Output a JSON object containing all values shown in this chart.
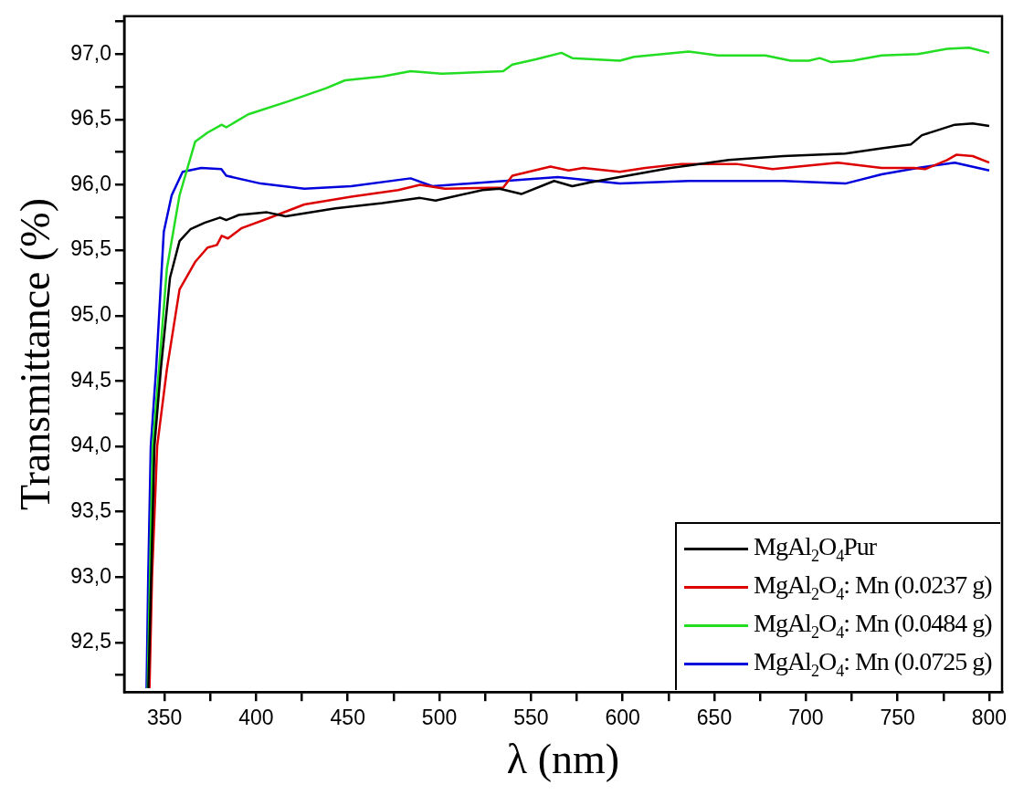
{
  "chart_data": {
    "type": "line",
    "xlabel": "λ (nm)",
    "ylabel": "Transmittance (%)",
    "xlim": [
      328,
      807
    ],
    "ylim": [
      92.12,
      97.29
    ],
    "xticks": [
      350,
      {
        "value": 375,
        "label": null
      },
      400,
      {
        "value": 425,
        "label": null
      },
      450,
      {
        "value": 475,
        "label": null
      },
      500,
      {
        "value": 525,
        "label": null
      },
      550,
      {
        "value": 575,
        "label": null
      },
      600,
      {
        "value": 625,
        "label": null
      },
      650,
      {
        "value": 675,
        "label": null
      },
      700,
      {
        "value": 725,
        "label": null
      },
      750,
      {
        "value": 775,
        "label": null
      },
      800
    ],
    "yticks": [
      {
        "value": 92.25,
        "label": null
      },
      {
        "value": 92.5,
        "label": "92,5"
      },
      {
        "value": 92.75,
        "label": null
      },
      {
        "value": 93,
        "label": "93,0"
      },
      {
        "value": 93.25,
        "label": null
      },
      {
        "value": 93.5,
        "label": "93,5"
      },
      {
        "value": 93.75,
        "label": null
      },
      {
        "value": 94,
        "label": "94,0"
      },
      {
        "value": 94.25,
        "label": null
      },
      {
        "value": 94.5,
        "label": "94,5"
      },
      {
        "value": 94.75,
        "label": null
      },
      {
        "value": 95,
        "label": "95,0"
      },
      {
        "value": 95.25,
        "label": null
      },
      {
        "value": 95.5,
        "label": "95,5"
      },
      {
        "value": 95.75,
        "label": null
      },
      {
        "value": 96,
        "label": "96,0"
      },
      {
        "value": 96.25,
        "label": null
      },
      {
        "value": 96.5,
        "label": "96,5"
      },
      {
        "value": 96.75,
        "label": null
      },
      {
        "value": 97,
        "label": "97,0"
      },
      {
        "value": 97.25,
        "label": null
      }
    ],
    "grid": false,
    "legend": "bottom right",
    "marker": "none",
    "line_style": "solid",
    "series": [
      {
        "name": "MgAl$_{2}$O$_{4}$Pur",
        "color": "#000000",
        "x": [
          341.2,
          344.5,
          348,
          353,
          358.2,
          364.1,
          371.8,
          380.3,
          383.7,
          390.5,
          405.9,
          416.1,
          443.3,
          468.9,
          489.4,
          497.9,
          523.5,
          532.8,
          544.7,
          562.6,
          572.5,
          582.4,
          626.1,
          657.9,
          687.7,
          721.5,
          741.3,
          757.3,
          763.3,
          781.2,
          791,
          800
        ],
        "values": [
          92.15,
          94.0,
          94.59,
          95.29,
          95.57,
          95.66,
          95.71,
          95.75,
          95.73,
          95.77,
          95.79,
          95.76,
          95.82,
          95.86,
          95.9,
          95.88,
          95.96,
          95.97,
          95.93,
          96.03,
          95.99,
          96.02,
          96.13,
          96.19,
          96.22,
          96.24,
          96.28,
          96.31,
          96.38,
          96.46,
          96.47,
          96.45
        ]
      },
      {
        "name": "MgAl$_{2}$O$_{4}$: Mn (0.0237 g)",
        "color": "#dd0000",
        "x": [
          341.8,
          343.2,
          346,
          351.3,
          358.2,
          366.7,
          373.5,
          378.6,
          381.2,
          384.6,
          392.2,
          405.9,
          426.3,
          451.9,
          477.5,
          489.4,
          503,
          534.8,
          539.8,
          560.6,
          570.5,
          578.5,
          598.4,
          612.3,
          632.1,
          662,
          681.8,
          717.5,
          741.3,
          759,
          765,
          777,
          782,
          791,
          800
        ],
        "values": [
          92.15,
          93.0,
          94.0,
          94.59,
          95.2,
          95.41,
          95.52,
          95.54,
          95.61,
          95.59,
          95.67,
          95.74,
          95.85,
          95.91,
          95.96,
          96.0,
          95.97,
          95.98,
          96.07,
          96.14,
          96.11,
          96.13,
          96.1,
          96.13,
          96.16,
          96.16,
          96.12,
          96.17,
          96.13,
          96.13,
          96.12,
          96.19,
          96.23,
          96.22,
          96.17
        ]
      },
      {
        "name": "MgAl$_{2}$O$_{4}$: Mn (0.0484 g)",
        "color": "#22dd22",
        "x": [
          340.8,
          343.5,
          347,
          351.3,
          358.2,
          366.7,
          373.5,
          381.2,
          383.7,
          395.7,
          417.8,
          438.2,
          448.5,
          469,
          484.3,
          501.3,
          534.8,
          539.8,
          552.6,
          566.6,
          572.5,
          598.4,
          606.3,
          636,
          652,
          677.8,
          691.7,
          701.6,
          707.5,
          713.5,
          725.4,
          741.3,
          761,
          777,
          789,
          800
        ],
        "values": [
          92.15,
          94.0,
          94.59,
          95.36,
          95.92,
          96.33,
          96.4,
          96.46,
          96.44,
          96.54,
          96.64,
          96.74,
          96.8,
          96.83,
          96.87,
          96.85,
          96.87,
          96.92,
          96.96,
          97.01,
          96.97,
          96.95,
          96.98,
          97.02,
          96.99,
          96.99,
          96.95,
          96.95,
          96.97,
          96.94,
          96.95,
          96.99,
          97.0,
          97.04,
          97.05,
          97.01
        ]
      },
      {
        "name": "MgAl$_{2}$O$_{4}$: Mn (0.0725 g)",
        "color": "#0000dd",
        "x": [
          340.2,
          341.1,
          342.5,
          345.4,
          349.6,
          353.9,
          359.9,
          370,
          381,
          383.7,
          402.5,
          426.3,
          451.9,
          484.3,
          496.2,
          564.6,
          598.4,
          636,
          687.7,
          721.5,
          741.3,
          761,
          781.2,
          800
        ],
        "values": [
          92.15,
          93.0,
          94.0,
          94.59,
          95.64,
          95.92,
          96.1,
          96.13,
          96.12,
          96.07,
          96.01,
          95.97,
          95.99,
          96.05,
          95.99,
          96.06,
          96.01,
          96.03,
          96.03,
          96.01,
          96.08,
          96.13,
          96.17,
          96.11
        ]
      }
    ]
  }
}
